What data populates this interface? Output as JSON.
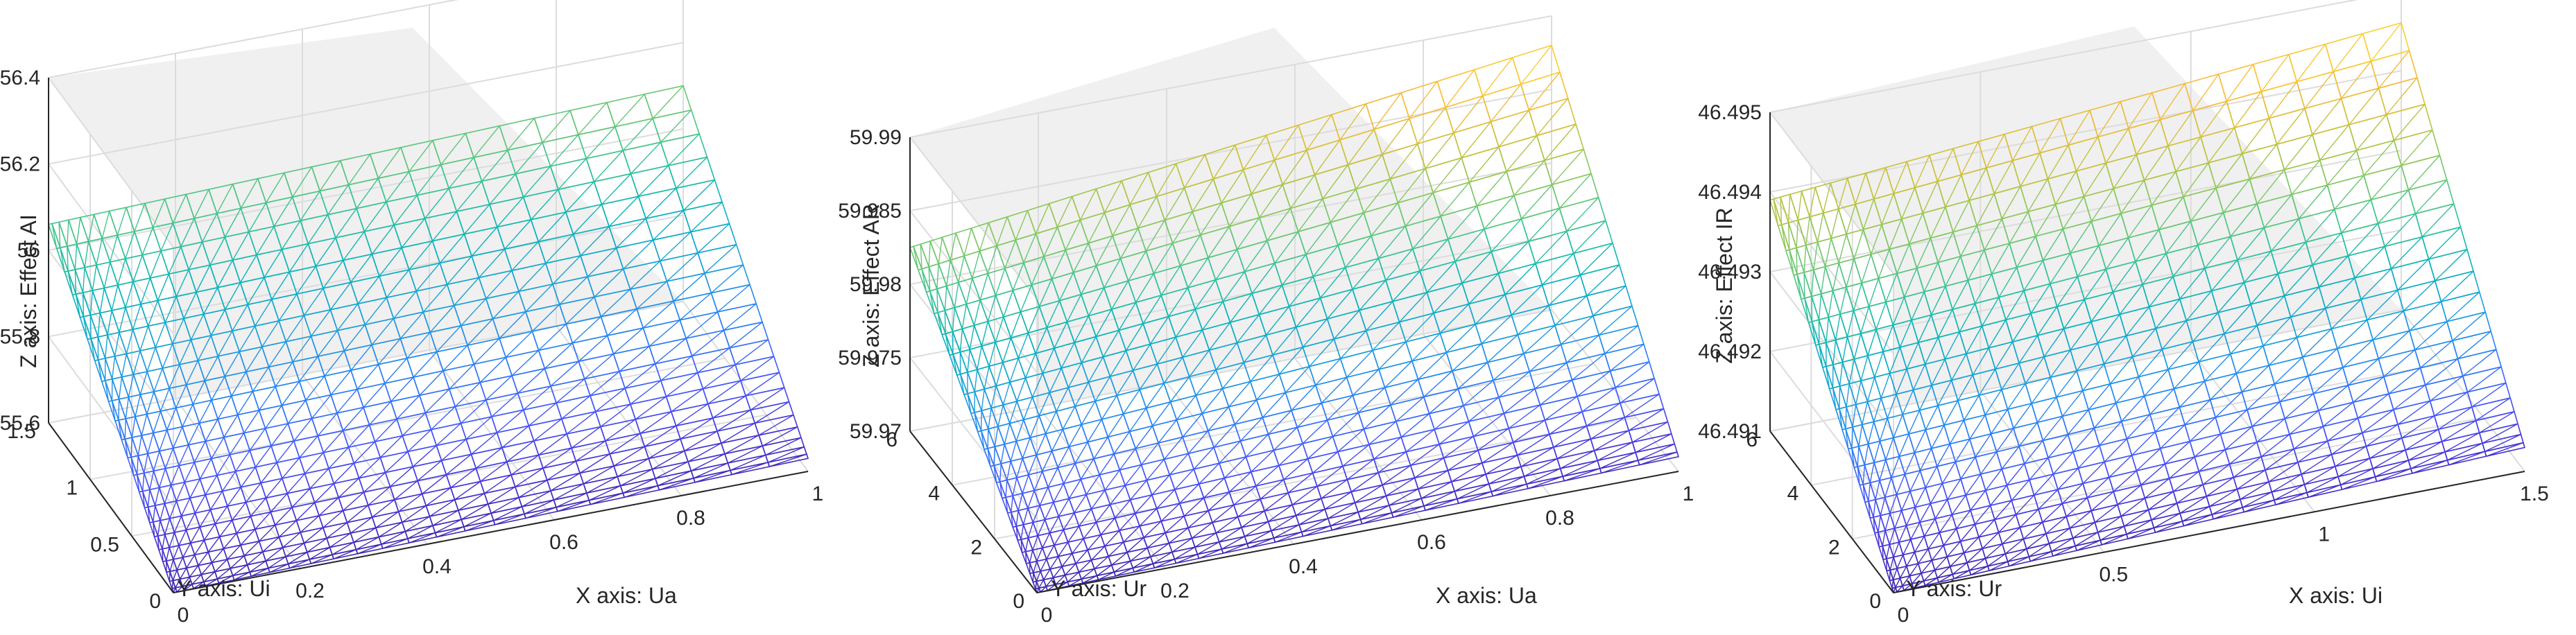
{
  "chart_data": [
    {
      "type": "surface-mesh",
      "colormap": "parula",
      "xlabel": "X axis: Ua",
      "ylabel": "Y axis: Ui",
      "zlabel": "Z axis: Effect AI",
      "xlim": [
        0,
        1
      ],
      "ylim": [
        0,
        1.5
      ],
      "zlim": [
        55.6,
        56.4
      ],
      "xticks": [
        "0",
        "0.2",
        "0.4",
        "0.6",
        "0.8",
        "1"
      ],
      "yticks": [
        "0",
        "0.5",
        "1",
        "1.5"
      ],
      "zticks": [
        "55.6",
        "55.8",
        "56",
        "56.2",
        "56.4"
      ],
      "corners": {
        "x0_y0": 55.6,
        "x1_y0": 55.63,
        "x0_y1": 56.06,
        "x1_y1": 56.1
      },
      "grid": true
    },
    {
      "type": "surface-mesh",
      "colormap": "parula",
      "xlabel": "X axis: Ua",
      "ylabel": "Y axis: Ur",
      "zlabel": "Z axis: Effect AR",
      "xlim": [
        0,
        1
      ],
      "ylim": [
        0,
        6
      ],
      "zlim": [
        59.97,
        59.99
      ],
      "xticks": [
        "0",
        "0.2",
        "0.4",
        "0.6",
        "0.8",
        "1"
      ],
      "yticks": [
        "0",
        "2",
        "4",
        "6"
      ],
      "zticks": [
        "59.97",
        "59.975",
        "59.98",
        "59.985",
        "59.99"
      ],
      "corners": {
        "x0_y0": 59.97,
        "x1_y0": 59.971,
        "x0_y1": 59.9825,
        "x1_y1": 59.988
      },
      "grid": true
    },
    {
      "type": "surface-mesh",
      "colormap": "parula",
      "xlabel": "X axis: Ui",
      "ylabel": "Y axis: Ur",
      "zlabel": "Z axis: Effect IR",
      "xlim": [
        0,
        1.5
      ],
      "ylim": [
        0,
        6
      ],
      "zlim": [
        46.491,
        46.495
      ],
      "xticks": [
        "0",
        "0.5",
        "1",
        "1.5"
      ],
      "yticks": [
        "0",
        "2",
        "4",
        "6"
      ],
      "zticks": [
        "46.491",
        "46.492",
        "46.493",
        "46.494",
        "46.495"
      ],
      "corners": {
        "x0_y0": 46.491,
        "x1_y0": 46.4913,
        "x0_y1": 46.4939,
        "x1_y1": 46.4946
      },
      "grid": true
    }
  ]
}
